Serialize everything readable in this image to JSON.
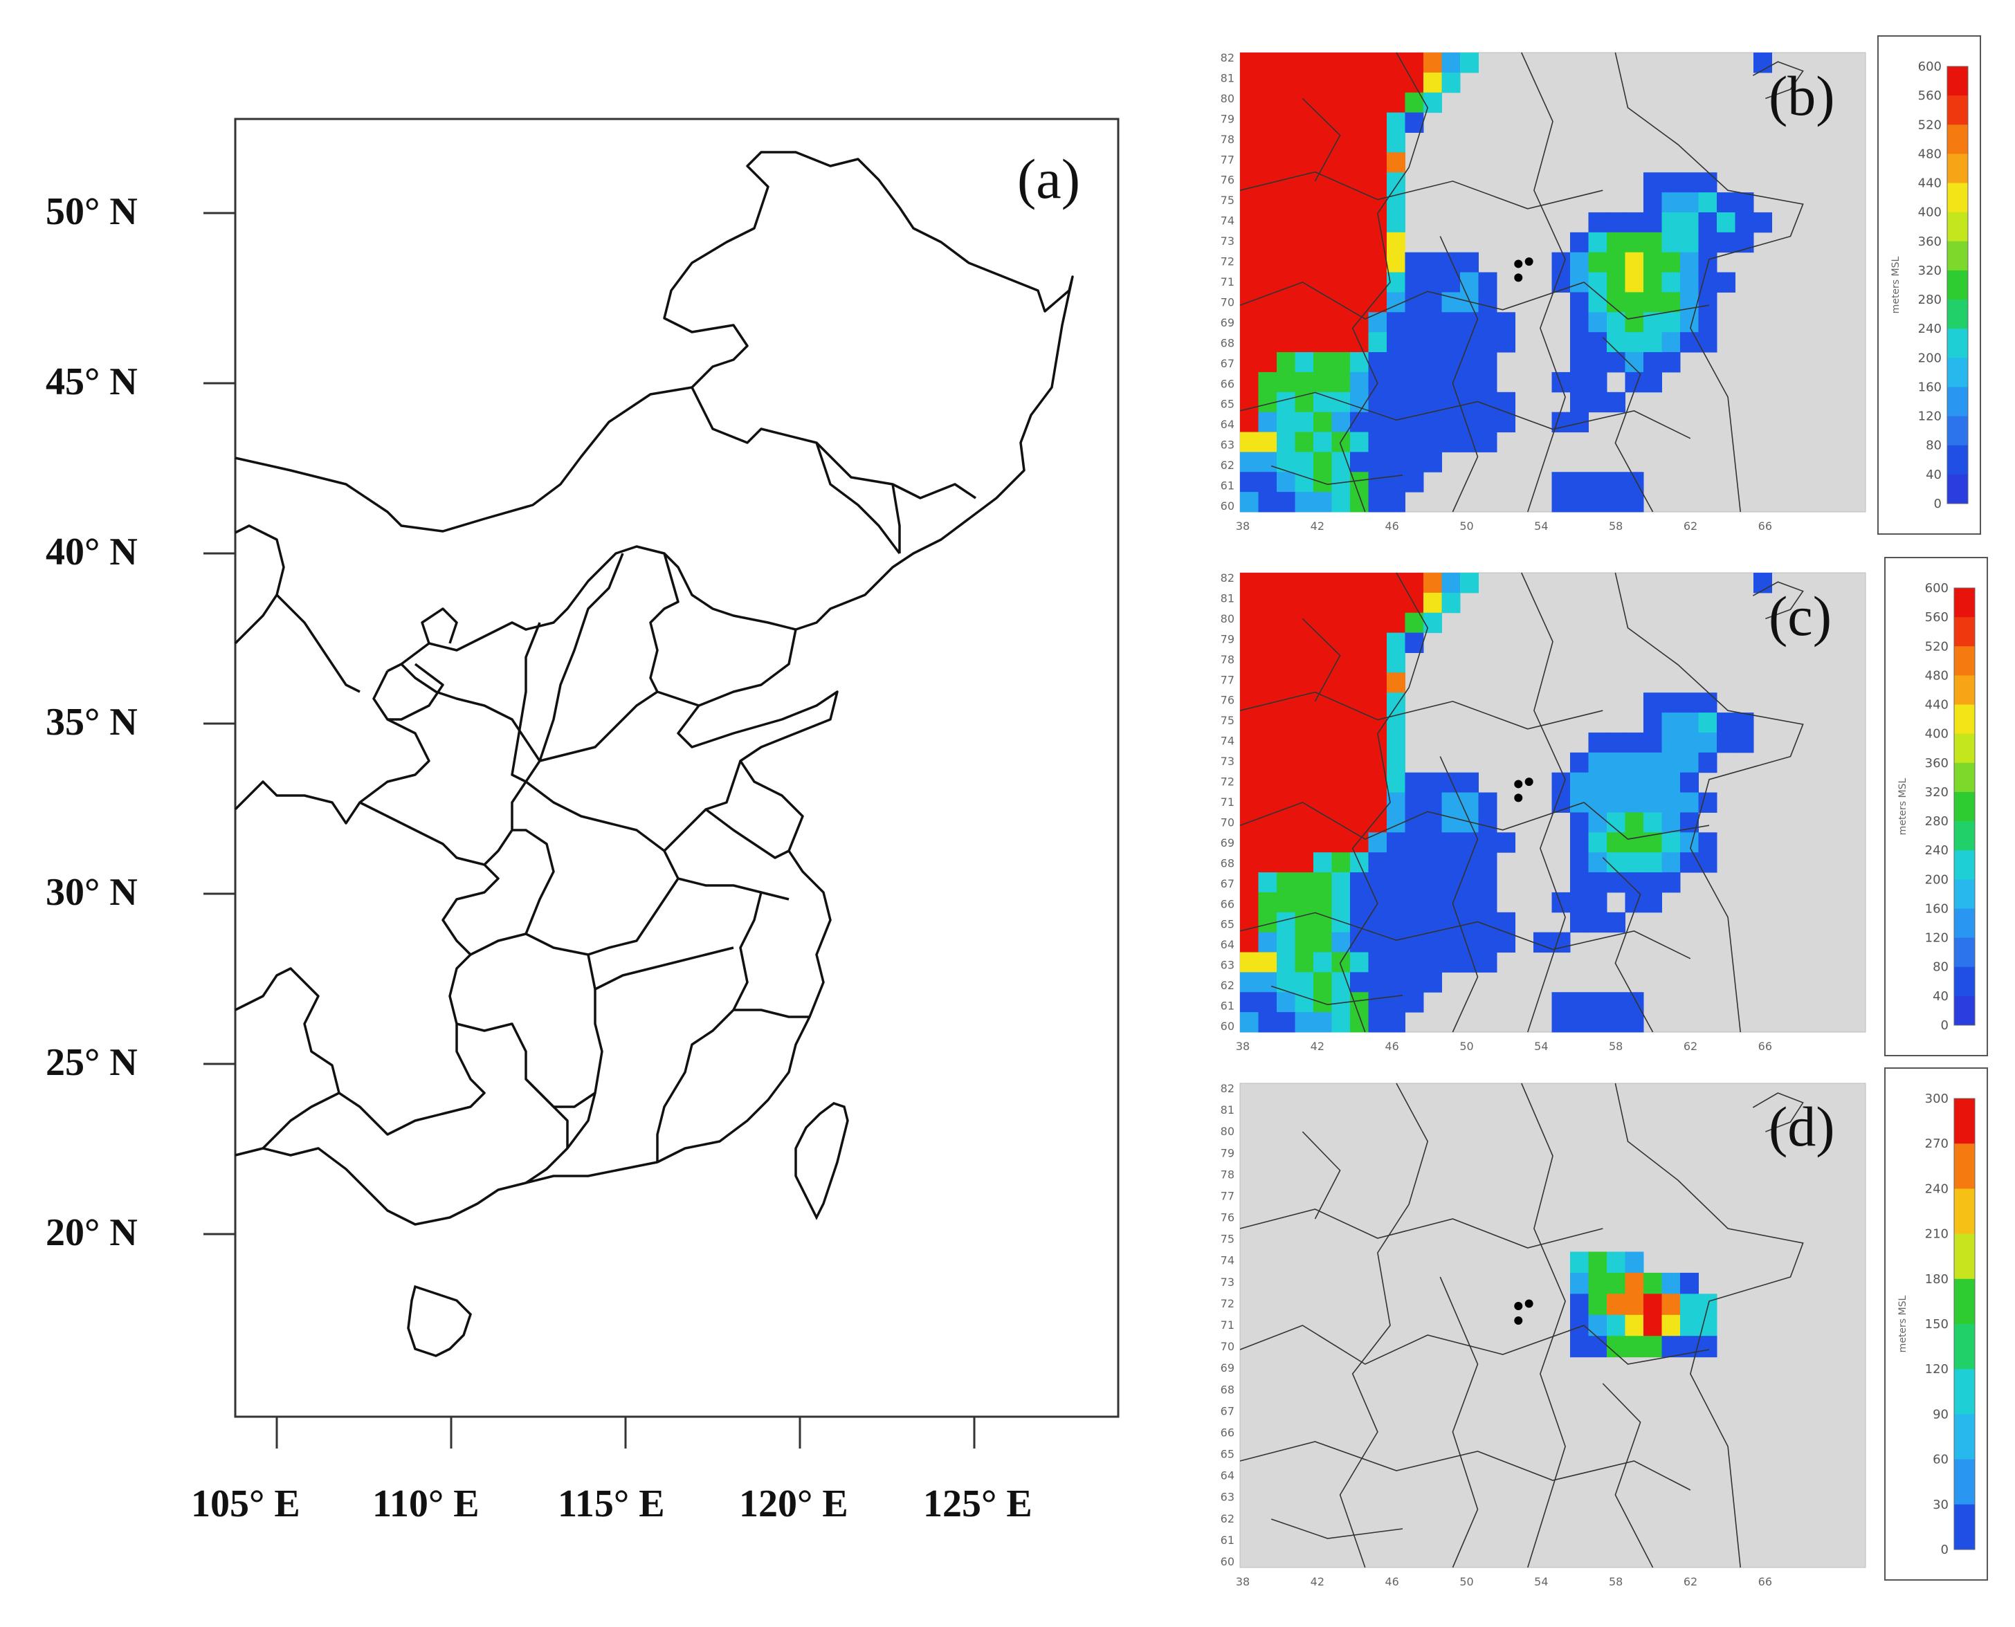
{
  "panels": {
    "a": {
      "label": "(a)",
      "lat_labels": [
        "50° N",
        "45° N",
        "40° N",
        "35° N",
        "30° N",
        "25° N",
        "20° N"
      ],
      "lon_labels": [
        "105° E",
        "110° E",
        "115° E",
        "120° E",
        "125° E"
      ]
    },
    "b": {
      "label": "(b)",
      "colorbar": {
        "ticks": [
          "600",
          "560",
          "520",
          "480",
          "440",
          "400",
          "360",
          "320",
          "280",
          "240",
          "200",
          "160",
          "120",
          "80",
          "40",
          "0"
        ],
        "unit": "meters MSL"
      }
    },
    "c": {
      "label": "(c)",
      "colorbar": {
        "ticks": [
          "600",
          "560",
          "520",
          "480",
          "440",
          "400",
          "360",
          "320",
          "280",
          "240",
          "200",
          "160",
          "120",
          "80",
          "40",
          "0"
        ],
        "unit": "meters MSL"
      }
    },
    "d": {
      "label": "(d)",
      "colorbar": {
        "ticks": [
          "300",
          "270",
          "240",
          "210",
          "180",
          "150",
          "120",
          "90",
          "60",
          "30",
          "0"
        ],
        "unit": "meters MSL"
      }
    }
  },
  "grid_axes": {
    "x_ticks": [
      "38",
      "42",
      "46",
      "50",
      "54",
      "58",
      "62",
      "66"
    ],
    "y_ticks": [
      "82",
      "81",
      "80",
      "79",
      "78",
      "77",
      "76",
      "75",
      "74",
      "73",
      "72",
      "71",
      "70",
      "69",
      "68",
      "67",
      "66",
      "65",
      "64",
      "63",
      "62",
      "61",
      "60"
    ]
  },
  "colors": {
    "red": "#e8140c",
    "orange": "#f57a10",
    "yellow": "#f2e416",
    "green": "#2ecb31",
    "cyan": "#1ecfd6",
    "lightblue": "#27a8ee",
    "blue": "#1f4fe4",
    "gray": "#d8d8d8"
  }
}
